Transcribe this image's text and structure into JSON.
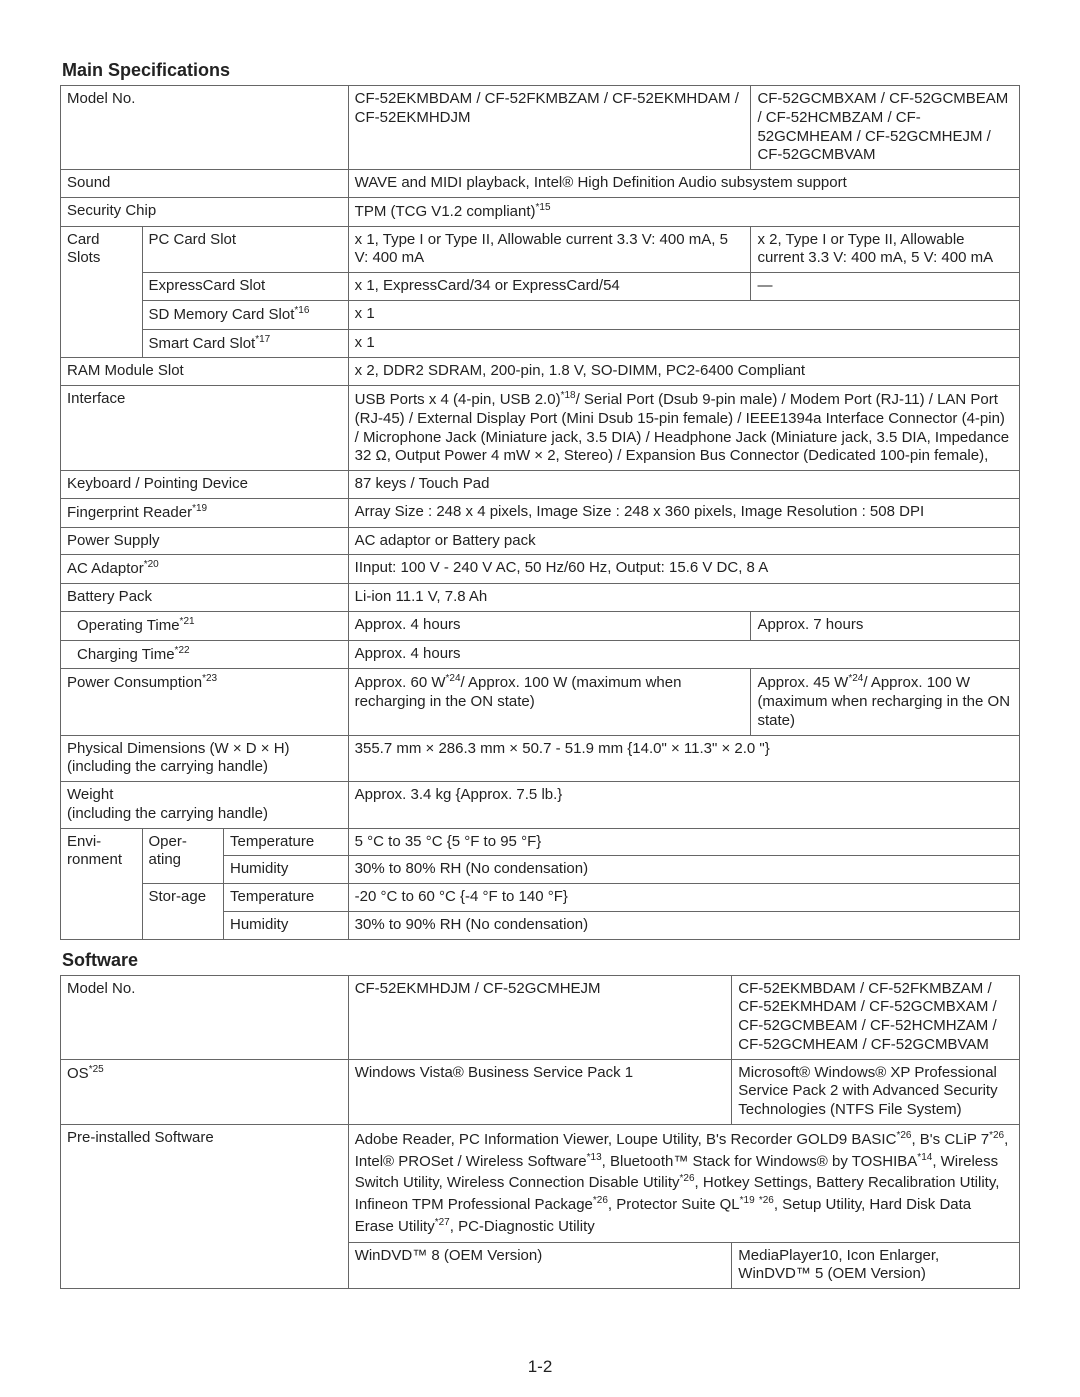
{
  "page_number": "1-2",
  "main_specs": {
    "heading": "Main Specifications",
    "cols": [
      "8.5%",
      "8.5%",
      "13%",
      "42%",
      "28%"
    ],
    "rows": [
      {
        "label_span": 3,
        "label": "Model No.",
        "v": [
          "CF-52EKMBDAM / CF-52FKMBZAM / CF-52EKMHDAM / CF-52EKMHDJM",
          "CF-52GCMBXAM / CF-52GCMBEAM / CF-52HCMBZAM / CF-52GCMHEAM / CF-52GCMHEJM / CF-52GCMBVAM"
        ]
      },
      {
        "label_span": 3,
        "label": "Sound",
        "merge": true,
        "v": [
          "WAVE and MIDI playback, Intel® High Definition Audio subsystem support"
        ]
      },
      {
        "label_span": 3,
        "label": "Security Chip",
        "merge": true,
        "v": [
          "TPM (TCG V1.2 compliant)*15"
        ]
      },
      {
        "group": {
          "rows": 4,
          "label": "Card Slots"
        },
        "sub_span": 2,
        "sub": "PC Card Slot",
        "v": [
          "x 1, Type I or Type II, Allowable current 3.3 V: 400 mA, 5 V: 400 mA",
          "x 2, Type I or Type II, Allowable current 3.3 V: 400 mA, 5 V: 400 mA"
        ]
      },
      {
        "sub_span": 2,
        "sub": "ExpressCard Slot",
        "v": [
          "x 1, ExpressCard/34 or ExpressCard/54",
          "—"
        ]
      },
      {
        "sub_span": 2,
        "sub": "SD Memory Card Slot*16",
        "merge": true,
        "v": [
          "x 1"
        ]
      },
      {
        "sub_span": 2,
        "sub": "Smart Card Slot*17",
        "merge": true,
        "v": [
          "x 1"
        ]
      },
      {
        "label_span": 3,
        "label": "RAM Module Slot",
        "merge": true,
        "v": [
          "x 2, DDR2 SDRAM, 200-pin, 1.8 V, SO-DIMM, PC2-6400 Compliant"
        ]
      },
      {
        "label_span": 3,
        "label": "Interface",
        "merge": true,
        "v": [
          "USB Ports x 4 (4-pin, USB 2.0)*18/ Serial Port (Dsub 9-pin male) / Modem Port (RJ-11) / LAN Port (RJ-45) / External Display Port (Mini Dsub 15-pin female) / IEEE1394a Interface Connector (4-pin) / Microphone Jack (Miniature jack, 3.5 DIA) / Headphone Jack (Miniature jack, 3.5 DIA, Impedance 32 Ω, Output Power 4 mW × 2, Stereo) / Expansion Bus Connector (Dedicated 100-pin female),"
        ]
      },
      {
        "label_span": 3,
        "label": "Keyboard / Pointing Device",
        "merge": true,
        "v": [
          "87 keys / Touch Pad"
        ]
      },
      {
        "label_span": 3,
        "label": "Fingerprint Reader*19",
        "merge": true,
        "v": [
          "Array Size : 248 x 4 pixels, Image Size : 248 x 360 pixels, Image Resolution : 508 DPI"
        ]
      },
      {
        "label_span": 3,
        "label": "Power Supply",
        "merge": true,
        "v": [
          "AC adaptor or Battery pack"
        ]
      },
      {
        "label_span": 3,
        "label": "AC Adaptor*20",
        "merge": true,
        "v": [
          "IInput: 100 V - 240 V AC, 50 Hz/60 Hz, Output: 15.6 V DC, 8 A"
        ]
      },
      {
        "label_span": 3,
        "label": "Battery Pack",
        "merge": true,
        "v": [
          "Li-ion 11.1 V, 7.8 Ah"
        ]
      },
      {
        "indent": true,
        "label_span": 3,
        "label": "Operating Time*21",
        "v": [
          "Approx. 4 hours",
          "Approx. 7 hours"
        ]
      },
      {
        "indent": true,
        "label_span": 3,
        "label": "Charging Time*22",
        "merge": true,
        "v": [
          "Approx. 4 hours"
        ]
      },
      {
        "label_span": 3,
        "label": "Power Consumption*23",
        "v": [
          "Approx. 60 W*24/ Approx. 100 W (maximum when recharging in the ON state)",
          "Approx. 45 W*24/ Approx. 100 W (maximum when recharging in the ON state)"
        ]
      },
      {
        "label_span": 3,
        "label": "Physical Dimensions (W × D × H)\n(including the carrying handle)",
        "merge": true,
        "v": [
          "355.7 mm × 286.3 mm × 50.7 - 51.9 mm {14.0\" × 11.3\" × 2.0 \"}"
        ]
      },
      {
        "label_span": 3,
        "label": "Weight\n(including the carrying handle)",
        "merge": true,
        "v": [
          "Approx. 3.4 kg {Approx. 7.5 lb.}"
        ]
      },
      {
        "group": {
          "rows": 4,
          "label": "Envi-ronment"
        },
        "sub_group": {
          "rows": 2,
          "label": "Oper-ating"
        },
        "sub": "Temperature",
        "merge": true,
        "v": [
          "5 °C to 35 °C {5 °F to 95 °F}"
        ]
      },
      {
        "sub": "Humidity",
        "merge": true,
        "v": [
          "30% to 80% RH (No condensation)"
        ]
      },
      {
        "sub_group": {
          "rows": 2,
          "label": "Stor-age"
        },
        "sub": "Temperature",
        "merge": true,
        "v": [
          "-20 °C to 60 °C {-4 °F to 140 °F}"
        ]
      },
      {
        "sub": "Humidity",
        "merge": true,
        "v": [
          "30% to 90% RH (No condensation)"
        ]
      }
    ]
  },
  "software": {
    "heading": "Software",
    "cols": [
      "30%",
      "40%",
      "30%"
    ],
    "rows": [
      {
        "label": "Model No.",
        "v": [
          "CF-52EKMHDJM / CF-52GCMHEJM",
          "CF-52EKMBDAM / CF-52FKMBZAM / CF-52EKMHDAM / CF-52GCMBXAM / CF-52GCMBEAM / CF-52HCMHZAM / CF-52GCMHEAM / CF-52GCMBVAM"
        ]
      },
      {
        "label": "OS*25",
        "v": [
          "Windows Vista® Business Service Pack 1",
          "Microsoft® Windows® XP Professional Service Pack 2 with Advanced Security Technologies (NTFS File System)"
        ]
      },
      {
        "label": "Pre-installed Software",
        "rowspan": 2,
        "merge": true,
        "v": [
          "Adobe Reader, PC Information Viewer, Loupe Utility, B's Recorder GOLD9 BASIC*26, B's CLiP 7*26, Intel® PROSet / Wireless Software*13, Bluetooth™ Stack for Windows® by TOSHIBA*14, Wireless Switch Utility, Wireless Connection Disable Utility*26, Hotkey Settings, Battery Recalibration Utility, Infineon TPM Professional Package*26, Protector Suite QL*19 *26, Setup Utility, Hard Disk Data Erase Utility*27, PC-Diagnostic Utility"
        ]
      },
      {
        "no_label": true,
        "v": [
          "WinDVD™ 8 (OEM Version)",
          "MediaPlayer10, Icon Enlarger, WinDVD™ 5 (OEM Version)"
        ]
      }
    ]
  }
}
